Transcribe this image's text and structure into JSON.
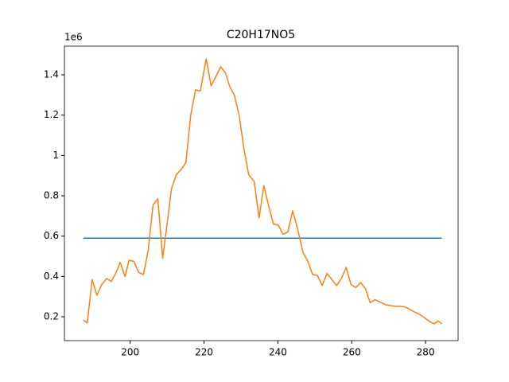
{
  "chart_data": {
    "type": "line",
    "title": "C20H17NO5",
    "y_offset_label": "1e6",
    "xlim": [
      182.2,
      288.8
    ],
    "ylim": [
      0.082,
      1.542
    ],
    "xticks": [
      200,
      220,
      240,
      260,
      280
    ],
    "yticks": [
      0.2,
      0.4,
      0.6,
      0.8,
      1.0,
      1.2,
      1.4
    ],
    "series": [
      {
        "color": "#1f77b4",
        "x": [
          187.3,
          284.4
        ],
        "values": [
          0.59,
          0.59
        ]
      },
      {
        "color": "#ff7f0e",
        "x": [
          187.3,
          188.4,
          189.7,
          191.0,
          192.3,
          193.6,
          194.9,
          196.2,
          197.3,
          198.6,
          199.7,
          201.0,
          202.3,
          203.6,
          204.9,
          206.2,
          207.5,
          208.8,
          209.9,
          211.2,
          212.5,
          213.8,
          215.1,
          216.4,
          217.7,
          219.0,
          220.6,
          221.9,
          223.2,
          224.5,
          225.8,
          226.9,
          228.2,
          229.5,
          230.8,
          232.1,
          233.6,
          234.9,
          236.2,
          237.5,
          238.8,
          240.1,
          241.4,
          242.7,
          244.0,
          245.3,
          246.8,
          248.1,
          249.4,
          250.7,
          252.0,
          253.3,
          254.6,
          255.9,
          257.2,
          258.5,
          259.8,
          261.1,
          262.4,
          263.7,
          265.0,
          266.3,
          267.8,
          269.1,
          270.4,
          271.7,
          273.0,
          274.3,
          275.6,
          276.9,
          278.2,
          279.5,
          281.0,
          282.3,
          283.4,
          284.4
        ],
        "values": [
          0.184,
          0.17,
          0.385,
          0.307,
          0.36,
          0.39,
          0.375,
          0.42,
          0.47,
          0.4,
          0.48,
          0.475,
          0.42,
          0.41,
          0.53,
          0.755,
          0.785,
          0.49,
          0.645,
          0.835,
          0.905,
          0.93,
          0.965,
          1.2,
          1.325,
          1.32,
          1.48,
          1.345,
          1.39,
          1.44,
          1.41,
          1.345,
          1.3,
          1.2,
          1.035,
          0.905,
          0.87,
          0.69,
          0.85,
          0.75,
          0.66,
          0.655,
          0.61,
          0.62,
          0.725,
          0.64,
          0.52,
          0.475,
          0.41,
          0.405,
          0.355,
          0.415,
          0.385,
          0.355,
          0.39,
          0.445,
          0.36,
          0.345,
          0.37,
          0.34,
          0.27,
          0.285,
          0.272,
          0.26,
          0.256,
          0.252,
          0.252,
          0.25,
          0.238,
          0.225,
          0.214,
          0.198,
          0.178,
          0.165,
          0.18,
          0.165
        ]
      }
    ]
  }
}
